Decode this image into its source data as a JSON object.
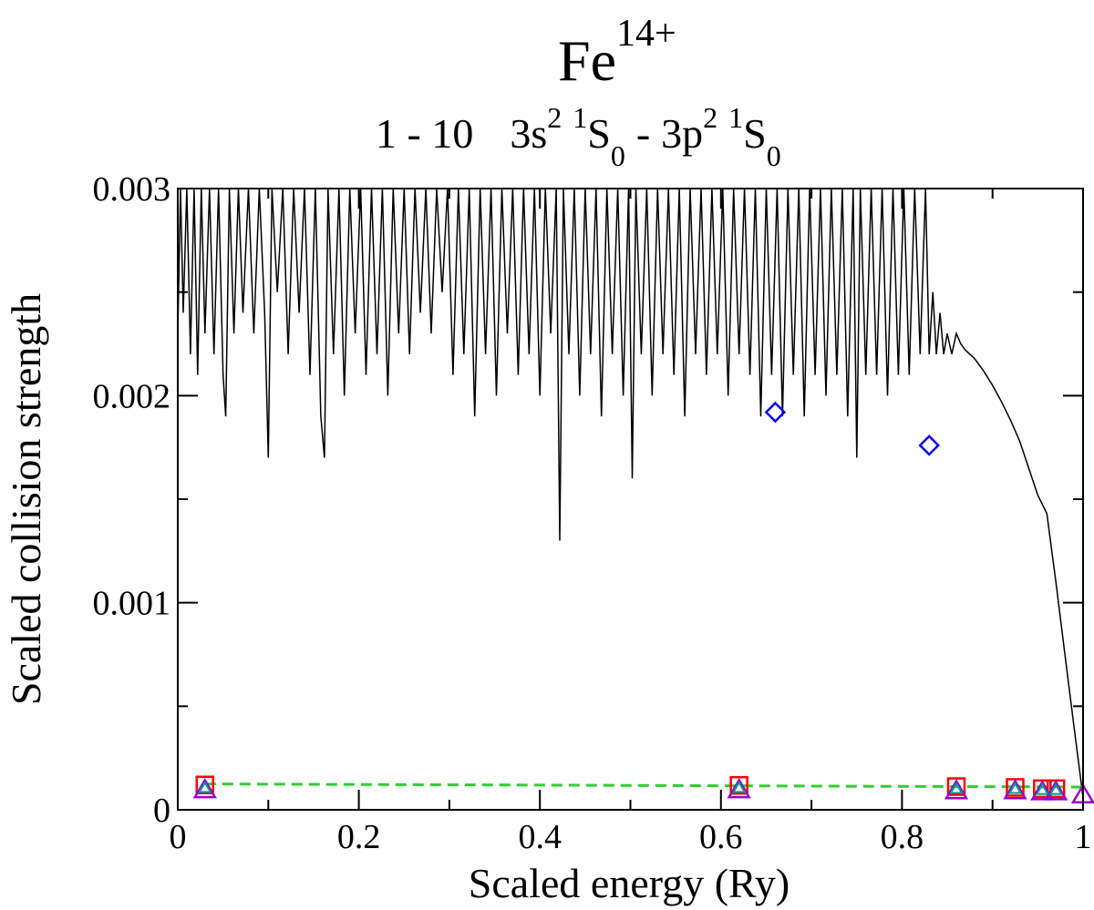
{
  "chart_data": {
    "type": "line",
    "title": {
      "species": "Fe",
      "charge": "14+"
    },
    "subtitle": {
      "transition": "1 - 10",
      "lower": {
        "config": "3s",
        "config_sup": "2",
        "term_sup": "1",
        "term": "S",
        "term_sub": "0"
      },
      "upper": {
        "config": "3p",
        "config_sup": "2",
        "term_sup": "1",
        "term": "S",
        "term_sub": "0"
      },
      "separator": "-"
    },
    "xlabel": "Scaled energy (Ry)",
    "ylabel": "Scaled collision strength",
    "xlim": [
      0,
      1
    ],
    "ylim": [
      0,
      0.003
    ],
    "x_ticks": [
      0,
      0.2,
      0.4,
      0.6,
      0.8,
      1
    ],
    "x_tick_labels": [
      "0",
      "0.2",
      "0.4",
      "0.6",
      "0.8",
      "1"
    ],
    "y_ticks": [
      0,
      0.001,
      0.002,
      0.003
    ],
    "y_tick_labels": [
      "0",
      "0.001",
      "0.002",
      "0.003"
    ],
    "grid": false,
    "series": [
      {
        "style": "resonance-line",
        "color": "#000000",
        "points": [
          [
            0.0,
            0.0023
          ],
          [
            0.003,
            0.003
          ],
          [
            0.006,
            0.0024
          ],
          [
            0.01,
            0.003
          ],
          [
            0.014,
            0.0022
          ],
          [
            0.018,
            0.003
          ],
          [
            0.022,
            0.0021
          ],
          [
            0.026,
            0.003
          ],
          [
            0.03,
            0.0023
          ],
          [
            0.035,
            0.003
          ],
          [
            0.04,
            0.0022
          ],
          [
            0.045,
            0.003
          ],
          [
            0.05,
            0.0021
          ],
          [
            0.053,
            0.0019
          ],
          [
            0.057,
            0.003
          ],
          [
            0.062,
            0.0023
          ],
          [
            0.067,
            0.003
          ],
          [
            0.072,
            0.0024
          ],
          [
            0.078,
            0.003
          ],
          [
            0.084,
            0.0023
          ],
          [
            0.09,
            0.003
          ],
          [
            0.096,
            0.0024
          ],
          [
            0.1,
            0.0017
          ],
          [
            0.104,
            0.003
          ],
          [
            0.11,
            0.0025
          ],
          [
            0.116,
            0.003
          ],
          [
            0.122,
            0.0022
          ],
          [
            0.128,
            0.003
          ],
          [
            0.134,
            0.0024
          ],
          [
            0.14,
            0.003
          ],
          [
            0.146,
            0.0021
          ],
          [
            0.152,
            0.003
          ],
          [
            0.158,
            0.0019
          ],
          [
            0.162,
            0.0017
          ],
          [
            0.166,
            0.003
          ],
          [
            0.172,
            0.0022
          ],
          [
            0.178,
            0.003
          ],
          [
            0.184,
            0.002
          ],
          [
            0.19,
            0.003
          ],
          [
            0.196,
            0.0023
          ],
          [
            0.202,
            0.003
          ],
          [
            0.208,
            0.0021
          ],
          [
            0.214,
            0.003
          ],
          [
            0.22,
            0.0022
          ],
          [
            0.226,
            0.003
          ],
          [
            0.232,
            0.002
          ],
          [
            0.238,
            0.003
          ],
          [
            0.244,
            0.0023
          ],
          [
            0.25,
            0.003
          ],
          [
            0.256,
            0.0022
          ],
          [
            0.262,
            0.003
          ],
          [
            0.268,
            0.0024
          ],
          [
            0.274,
            0.003
          ],
          [
            0.28,
            0.0023
          ],
          [
            0.286,
            0.003
          ],
          [
            0.292,
            0.0025
          ],
          [
            0.298,
            0.003
          ],
          [
            0.304,
            0.0021
          ],
          [
            0.31,
            0.003
          ],
          [
            0.316,
            0.0022
          ],
          [
            0.322,
            0.003
          ],
          [
            0.328,
            0.0019
          ],
          [
            0.334,
            0.003
          ],
          [
            0.34,
            0.0022
          ],
          [
            0.346,
            0.003
          ],
          [
            0.352,
            0.002
          ],
          [
            0.358,
            0.003
          ],
          [
            0.364,
            0.0023
          ],
          [
            0.37,
            0.003
          ],
          [
            0.376,
            0.0021
          ],
          [
            0.382,
            0.003
          ],
          [
            0.388,
            0.0022
          ],
          [
            0.394,
            0.003
          ],
          [
            0.4,
            0.002
          ],
          [
            0.406,
            0.003
          ],
          [
            0.412,
            0.0023
          ],
          [
            0.418,
            0.003
          ],
          [
            0.422,
            0.0013
          ],
          [
            0.426,
            0.003
          ],
          [
            0.432,
            0.0022
          ],
          [
            0.438,
            0.003
          ],
          [
            0.444,
            0.002
          ],
          [
            0.45,
            0.003
          ],
          [
            0.456,
            0.0022
          ],
          [
            0.462,
            0.003
          ],
          [
            0.468,
            0.0019
          ],
          [
            0.474,
            0.003
          ],
          [
            0.48,
            0.0022
          ],
          [
            0.486,
            0.003
          ],
          [
            0.492,
            0.002
          ],
          [
            0.498,
            0.003
          ],
          [
            0.502,
            0.0016
          ],
          [
            0.506,
            0.003
          ],
          [
            0.512,
            0.0022
          ],
          [
            0.518,
            0.003
          ],
          [
            0.524,
            0.002
          ],
          [
            0.53,
            0.003
          ],
          [
            0.536,
            0.0022
          ],
          [
            0.542,
            0.003
          ],
          [
            0.548,
            0.0021
          ],
          [
            0.554,
            0.003
          ],
          [
            0.56,
            0.0019
          ],
          [
            0.566,
            0.003
          ],
          [
            0.572,
            0.0022
          ],
          [
            0.578,
            0.003
          ],
          [
            0.584,
            0.0021
          ],
          [
            0.59,
            0.003
          ],
          [
            0.596,
            0.0022
          ],
          [
            0.602,
            0.003
          ],
          [
            0.608,
            0.002
          ],
          [
            0.614,
            0.003
          ],
          [
            0.62,
            0.0022
          ],
          [
            0.626,
            0.003
          ],
          [
            0.632,
            0.0021
          ],
          [
            0.638,
            0.003
          ],
          [
            0.644,
            0.0019
          ],
          [
            0.65,
            0.003
          ],
          [
            0.656,
            0.0021
          ],
          [
            0.662,
            0.003
          ],
          [
            0.668,
            0.0019
          ],
          [
            0.674,
            0.003
          ],
          [
            0.68,
            0.0021
          ],
          [
            0.686,
            0.003
          ],
          [
            0.692,
            0.0019
          ],
          [
            0.698,
            0.003
          ],
          [
            0.704,
            0.0021
          ],
          [
            0.71,
            0.003
          ],
          [
            0.716,
            0.002
          ],
          [
            0.722,
            0.003
          ],
          [
            0.728,
            0.0021
          ],
          [
            0.734,
            0.003
          ],
          [
            0.74,
            0.0019
          ],
          [
            0.746,
            0.003
          ],
          [
            0.75,
            0.0017
          ],
          [
            0.754,
            0.003
          ],
          [
            0.76,
            0.0021
          ],
          [
            0.766,
            0.003
          ],
          [
            0.772,
            0.0021
          ],
          [
            0.778,
            0.003
          ],
          [
            0.784,
            0.002
          ],
          [
            0.79,
            0.003
          ],
          [
            0.796,
            0.0021
          ],
          [
            0.802,
            0.003
          ],
          [
            0.808,
            0.0021
          ],
          [
            0.814,
            0.003
          ],
          [
            0.82,
            0.0022
          ],
          [
            0.826,
            0.003
          ],
          [
            0.83,
            0.0022
          ],
          [
            0.834,
            0.0025
          ],
          [
            0.838,
            0.0022
          ],
          [
            0.842,
            0.0024
          ],
          [
            0.846,
            0.0022
          ],
          [
            0.85,
            0.0023
          ],
          [
            0.855,
            0.0022
          ],
          [
            0.86,
            0.0023
          ],
          [
            0.865,
            0.00225
          ],
          [
            0.87,
            0.00222
          ],
          [
            0.88,
            0.00218
          ],
          [
            0.89,
            0.00212
          ],
          [
            0.9,
            0.00205
          ],
          [
            0.91,
            0.00197
          ],
          [
            0.92,
            0.00188
          ],
          [
            0.93,
            0.00178
          ],
          [
            0.94,
            0.00165
          ],
          [
            0.95,
            0.00152
          ],
          [
            0.96,
            0.00143
          ],
          [
            0.97,
            0.0011
          ],
          [
            0.98,
            0.00075
          ],
          [
            0.99,
            0.0004
          ],
          [
            1.0,
            6e-05
          ]
        ]
      },
      {
        "style": "dashed",
        "color": "#33cc33",
        "points": [
          [
            0.03,
            0.000125
          ],
          [
            1.0,
            0.00011
          ]
        ]
      },
      {
        "marker": "diamond",
        "color": "#0000ff",
        "points": [
          [
            0.66,
            0.00192
          ],
          [
            0.83,
            0.00176
          ]
        ]
      },
      {
        "marker": "square",
        "color": "#ff0000",
        "points": [
          [
            0.03,
            0.00012
          ],
          [
            0.62,
            0.000118
          ],
          [
            0.86,
            0.000112
          ],
          [
            0.925,
            0.000108
          ],
          [
            0.955,
            0.000102
          ],
          [
            0.97,
            0.000102
          ]
        ]
      },
      {
        "marker": "triangle",
        "color": "#9900cc",
        "points": [
          [
            0.03,
            9.5e-05
          ],
          [
            0.62,
            9.5e-05
          ],
          [
            0.86,
            9e-05
          ],
          [
            0.925,
            9e-05
          ],
          [
            0.955,
            8.5e-05
          ],
          [
            0.97,
            8.5e-05
          ],
          [
            1.0,
            7e-05
          ]
        ]
      },
      {
        "marker": "small-triangle",
        "color": "#009999",
        "points": [
          [
            0.03,
            0.000105
          ],
          [
            0.62,
            0.000105
          ],
          [
            0.86,
            0.0001
          ],
          [
            0.925,
            0.0001
          ],
          [
            0.955,
            9.5e-05
          ],
          [
            0.97,
            9.5e-05
          ]
        ]
      }
    ]
  }
}
